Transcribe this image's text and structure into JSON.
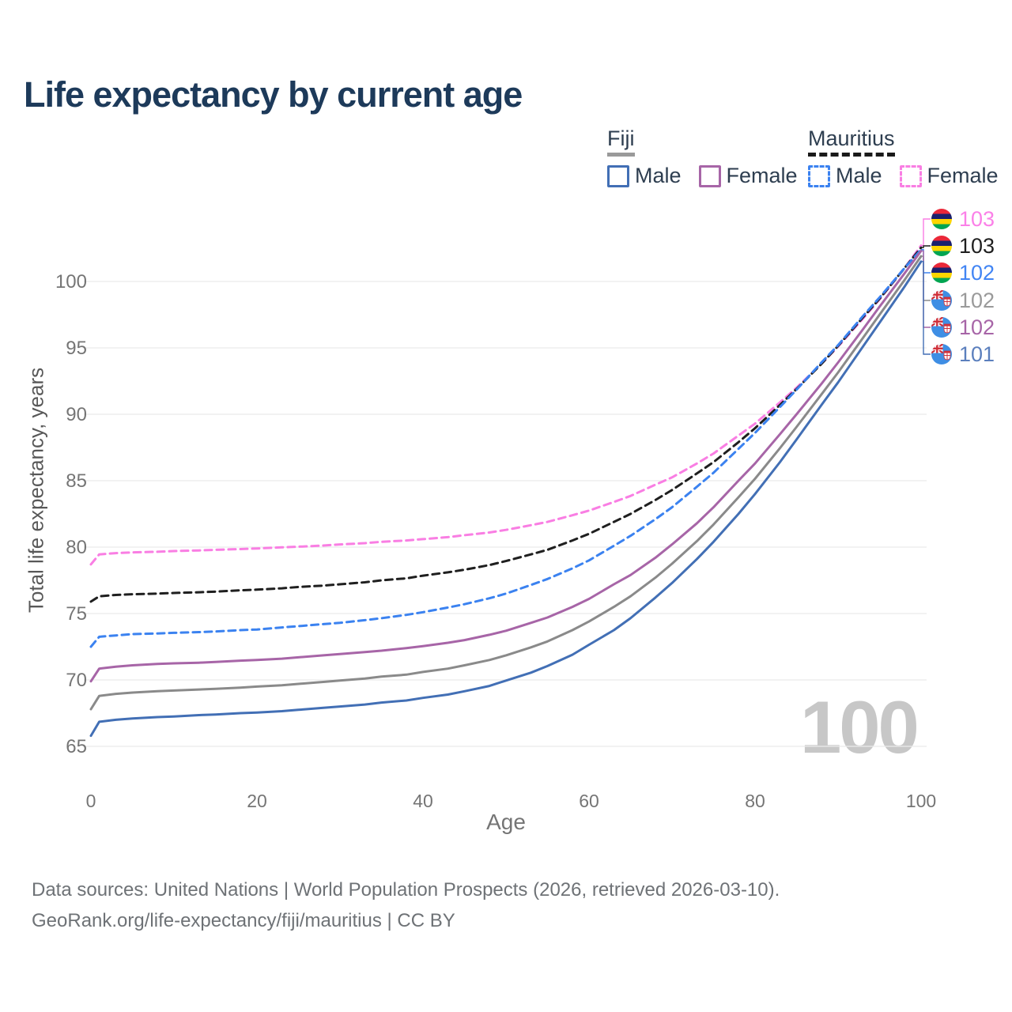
{
  "title": "Life expectancy by current age",
  "watermark_age": "100",
  "legend": {
    "groups": [
      {
        "name": "Fiji",
        "underline_style": "solid",
        "underline_color": "#9a9a9a",
        "items": [
          {
            "label": "Male",
            "color": "#426fb5",
            "dashed": false
          },
          {
            "label": "Female",
            "color": "#a765a7",
            "dashed": false
          }
        ]
      },
      {
        "name": "Mauritius",
        "underline_style": "dashed",
        "underline_color": "#1a1a1a",
        "items": [
          {
            "label": "Male",
            "color": "#3b82f0",
            "dashed": true
          },
          {
            "label": "Female",
            "color": "#f97ee3",
            "dashed": true
          }
        ]
      }
    ]
  },
  "chart_data": {
    "type": "line",
    "title": "Life expectancy by current age",
    "xlabel": "Age",
    "ylabel": "Total life expectancy, years",
    "xlim": [
      0,
      100
    ],
    "ylim": [
      65,
      103.5
    ],
    "xticks": [
      0,
      20,
      40,
      60,
      80,
      100
    ],
    "yticks": [
      65,
      70,
      75,
      80,
      85,
      90,
      95,
      100
    ],
    "grid": "horizontal",
    "legend_position": "top-right",
    "series": [
      {
        "name": "Mauritius Female",
        "country": "mauritius",
        "sex": "female",
        "color": "#f97ee3",
        "dash": true,
        "end_label": "103",
        "end_label_color": "#fb80e8",
        "points": [
          [
            0,
            78.7
          ],
          [
            1,
            79.45
          ],
          [
            3,
            79.55
          ],
          [
            5,
            79.6
          ],
          [
            8,
            79.65
          ],
          [
            10,
            79.7
          ],
          [
            13,
            79.75
          ],
          [
            15,
            79.8
          ],
          [
            18,
            79.85
          ],
          [
            20,
            79.9
          ],
          [
            23,
            79.98
          ],
          [
            25,
            80.03
          ],
          [
            28,
            80.12
          ],
          [
            30,
            80.2
          ],
          [
            33,
            80.3
          ],
          [
            35,
            80.4
          ],
          [
            38,
            80.5
          ],
          [
            40,
            80.6
          ],
          [
            43,
            80.75
          ],
          [
            45,
            80.9
          ],
          [
            48,
            81.1
          ],
          [
            50,
            81.3
          ],
          [
            53,
            81.65
          ],
          [
            55,
            81.9
          ],
          [
            58,
            82.4
          ],
          [
            60,
            82.75
          ],
          [
            63,
            83.4
          ],
          [
            65,
            83.85
          ],
          [
            68,
            84.7
          ],
          [
            70,
            85.25
          ],
          [
            73,
            86.3
          ],
          [
            75,
            87.05
          ],
          [
            78,
            88.4
          ],
          [
            80,
            89.3
          ],
          [
            83,
            90.9
          ],
          [
            85,
            92.0
          ],
          [
            88,
            93.8
          ],
          [
            90,
            95.1
          ],
          [
            93,
            97.2
          ],
          [
            95,
            98.65
          ],
          [
            98,
            101.0
          ],
          [
            100,
            102.7
          ]
        ]
      },
      {
        "name": "Mauritius Total",
        "country": "mauritius",
        "sex": "both",
        "color": "#1f1f1f",
        "dash": true,
        "end_label": "103",
        "end_label_color": "#1f1f1f",
        "points": [
          [
            0,
            75.9
          ],
          [
            1,
            76.3
          ],
          [
            3,
            76.4
          ],
          [
            5,
            76.45
          ],
          [
            8,
            76.5
          ],
          [
            10,
            76.55
          ],
          [
            13,
            76.6
          ],
          [
            15,
            76.65
          ],
          [
            18,
            76.75
          ],
          [
            20,
            76.8
          ],
          [
            23,
            76.9
          ],
          [
            25,
            77.0
          ],
          [
            28,
            77.1
          ],
          [
            30,
            77.2
          ],
          [
            33,
            77.35
          ],
          [
            35,
            77.5
          ],
          [
            38,
            77.65
          ],
          [
            40,
            77.85
          ],
          [
            43,
            78.1
          ],
          [
            45,
            78.3
          ],
          [
            48,
            78.65
          ],
          [
            50,
            78.95
          ],
          [
            53,
            79.45
          ],
          [
            55,
            79.8
          ],
          [
            58,
            80.5
          ],
          [
            60,
            81.0
          ],
          [
            63,
            81.9
          ],
          [
            65,
            82.5
          ],
          [
            68,
            83.55
          ],
          [
            70,
            84.3
          ],
          [
            73,
            85.55
          ],
          [
            75,
            86.4
          ],
          [
            78,
            87.9
          ],
          [
            80,
            88.95
          ],
          [
            83,
            90.7
          ],
          [
            85,
            91.9
          ],
          [
            88,
            93.8
          ],
          [
            90,
            95.15
          ],
          [
            93,
            97.3
          ],
          [
            95,
            98.7
          ],
          [
            98,
            101.0
          ],
          [
            100,
            102.55
          ]
        ]
      },
      {
        "name": "Mauritius Male",
        "country": "mauritius",
        "sex": "male",
        "color": "#3b82f0",
        "dash": true,
        "end_label": "102",
        "end_label_color": "#4285f4",
        "points": [
          [
            0,
            72.5
          ],
          [
            1,
            73.25
          ],
          [
            3,
            73.35
          ],
          [
            5,
            73.45
          ],
          [
            8,
            73.5
          ],
          [
            10,
            73.55
          ],
          [
            13,
            73.6
          ],
          [
            15,
            73.65
          ],
          [
            18,
            73.75
          ],
          [
            20,
            73.8
          ],
          [
            23,
            73.95
          ],
          [
            25,
            74.05
          ],
          [
            28,
            74.2
          ],
          [
            30,
            74.3
          ],
          [
            33,
            74.5
          ],
          [
            35,
            74.65
          ],
          [
            38,
            74.9
          ],
          [
            40,
            75.1
          ],
          [
            43,
            75.45
          ],
          [
            45,
            75.7
          ],
          [
            48,
            76.15
          ],
          [
            50,
            76.5
          ],
          [
            53,
            77.15
          ],
          [
            55,
            77.6
          ],
          [
            58,
            78.4
          ],
          [
            60,
            79.0
          ],
          [
            63,
            80.1
          ],
          [
            65,
            80.85
          ],
          [
            68,
            82.1
          ],
          [
            70,
            83.0
          ],
          [
            73,
            84.55
          ],
          [
            75,
            85.6
          ],
          [
            78,
            87.4
          ],
          [
            80,
            88.6
          ],
          [
            83,
            90.55
          ],
          [
            85,
            91.85
          ],
          [
            88,
            93.9
          ],
          [
            90,
            95.2
          ],
          [
            93,
            97.4
          ],
          [
            95,
            98.8
          ],
          [
            98,
            101.0
          ],
          [
            100,
            102.4
          ]
        ]
      },
      {
        "name": "Fiji Total",
        "country": "fiji",
        "sex": "both",
        "color": "#8a8a8a",
        "dash": false,
        "end_label": "102",
        "end_label_color": "#9a9a9a",
        "points": [
          [
            0,
            67.8
          ],
          [
            1,
            68.8
          ],
          [
            3,
            68.95
          ],
          [
            5,
            69.05
          ],
          [
            8,
            69.15
          ],
          [
            10,
            69.2
          ],
          [
            13,
            69.28
          ],
          [
            15,
            69.33
          ],
          [
            18,
            69.42
          ],
          [
            20,
            69.5
          ],
          [
            23,
            69.6
          ],
          [
            25,
            69.7
          ],
          [
            28,
            69.85
          ],
          [
            30,
            69.95
          ],
          [
            33,
            70.1
          ],
          [
            35,
            70.25
          ],
          [
            38,
            70.4
          ],
          [
            40,
            70.6
          ],
          [
            43,
            70.85
          ],
          [
            45,
            71.1
          ],
          [
            48,
            71.5
          ],
          [
            50,
            71.85
          ],
          [
            53,
            72.45
          ],
          [
            55,
            72.9
          ],
          [
            58,
            73.75
          ],
          [
            60,
            74.4
          ],
          [
            63,
            75.5
          ],
          [
            65,
            76.3
          ],
          [
            68,
            77.7
          ],
          [
            70,
            78.75
          ],
          [
            73,
            80.45
          ],
          [
            75,
            81.7
          ],
          [
            78,
            83.75
          ],
          [
            80,
            85.15
          ],
          [
            83,
            87.45
          ],
          [
            85,
            89.05
          ],
          [
            88,
            91.5
          ],
          [
            90,
            93.15
          ],
          [
            93,
            95.75
          ],
          [
            95,
            97.5
          ],
          [
            98,
            100.1
          ],
          [
            100,
            101.9
          ]
        ]
      },
      {
        "name": "Fiji Female",
        "country": "fiji",
        "sex": "female",
        "color": "#a765a7",
        "dash": false,
        "end_label": "102",
        "end_label_color": "#a765a7",
        "points": [
          [
            0,
            69.9
          ],
          [
            1,
            70.85
          ],
          [
            3,
            71.0
          ],
          [
            5,
            71.1
          ],
          [
            8,
            71.2
          ],
          [
            10,
            71.25
          ],
          [
            13,
            71.3
          ],
          [
            15,
            71.35
          ],
          [
            18,
            71.45
          ],
          [
            20,
            71.5
          ],
          [
            23,
            71.6
          ],
          [
            25,
            71.7
          ],
          [
            28,
            71.85
          ],
          [
            30,
            71.95
          ],
          [
            33,
            72.1
          ],
          [
            35,
            72.2
          ],
          [
            38,
            72.4
          ],
          [
            40,
            72.55
          ],
          [
            43,
            72.8
          ],
          [
            45,
            73.0
          ],
          [
            48,
            73.4
          ],
          [
            50,
            73.7
          ],
          [
            53,
            74.3
          ],
          [
            55,
            74.7
          ],
          [
            58,
            75.5
          ],
          [
            60,
            76.1
          ],
          [
            63,
            77.2
          ],
          [
            65,
            77.9
          ],
          [
            68,
            79.2
          ],
          [
            70,
            80.2
          ],
          [
            73,
            81.8
          ],
          [
            75,
            83.0
          ],
          [
            78,
            85.0
          ],
          [
            80,
            86.3
          ],
          [
            83,
            88.5
          ],
          [
            85,
            90.0
          ],
          [
            88,
            92.3
          ],
          [
            90,
            93.9
          ],
          [
            93,
            96.4
          ],
          [
            95,
            98.1
          ],
          [
            98,
            100.6
          ],
          [
            100,
            102.3
          ]
        ]
      },
      {
        "name": "Fiji Male",
        "country": "fiji",
        "sex": "male",
        "color": "#426fb5",
        "dash": false,
        "end_label": "101",
        "end_label_color": "#5b7fbd",
        "points": [
          [
            0,
            65.8
          ],
          [
            1,
            66.85
          ],
          [
            3,
            67.0
          ],
          [
            5,
            67.1
          ],
          [
            8,
            67.2
          ],
          [
            10,
            67.25
          ],
          [
            13,
            67.35
          ],
          [
            15,
            67.4
          ],
          [
            18,
            67.5
          ],
          [
            20,
            67.55
          ],
          [
            23,
            67.65
          ],
          [
            25,
            67.75
          ],
          [
            28,
            67.9
          ],
          [
            30,
            68.0
          ],
          [
            33,
            68.15
          ],
          [
            35,
            68.3
          ],
          [
            38,
            68.45
          ],
          [
            40,
            68.65
          ],
          [
            43,
            68.9
          ],
          [
            45,
            69.15
          ],
          [
            48,
            69.55
          ],
          [
            50,
            69.95
          ],
          [
            53,
            70.55
          ],
          [
            55,
            71.05
          ],
          [
            58,
            71.9
          ],
          [
            60,
            72.65
          ],
          [
            63,
            73.75
          ],
          [
            65,
            74.65
          ],
          [
            68,
            76.2
          ],
          [
            70,
            77.3
          ],
          [
            73,
            79.1
          ],
          [
            75,
            80.4
          ],
          [
            78,
            82.5
          ],
          [
            80,
            84.0
          ],
          [
            83,
            86.4
          ],
          [
            85,
            88.1
          ],
          [
            88,
            90.7
          ],
          [
            90,
            92.4
          ],
          [
            93,
            95.1
          ],
          [
            95,
            96.9
          ],
          [
            98,
            99.6
          ],
          [
            100,
            101.5
          ]
        ]
      }
    ]
  },
  "footer": {
    "line1": "Data sources: United Nations | World Population Prospects (2026, retrieved 2026-03-10).",
    "line2": "GeoRank.org/life-expectancy/fiji/mauritius | CC BY"
  }
}
